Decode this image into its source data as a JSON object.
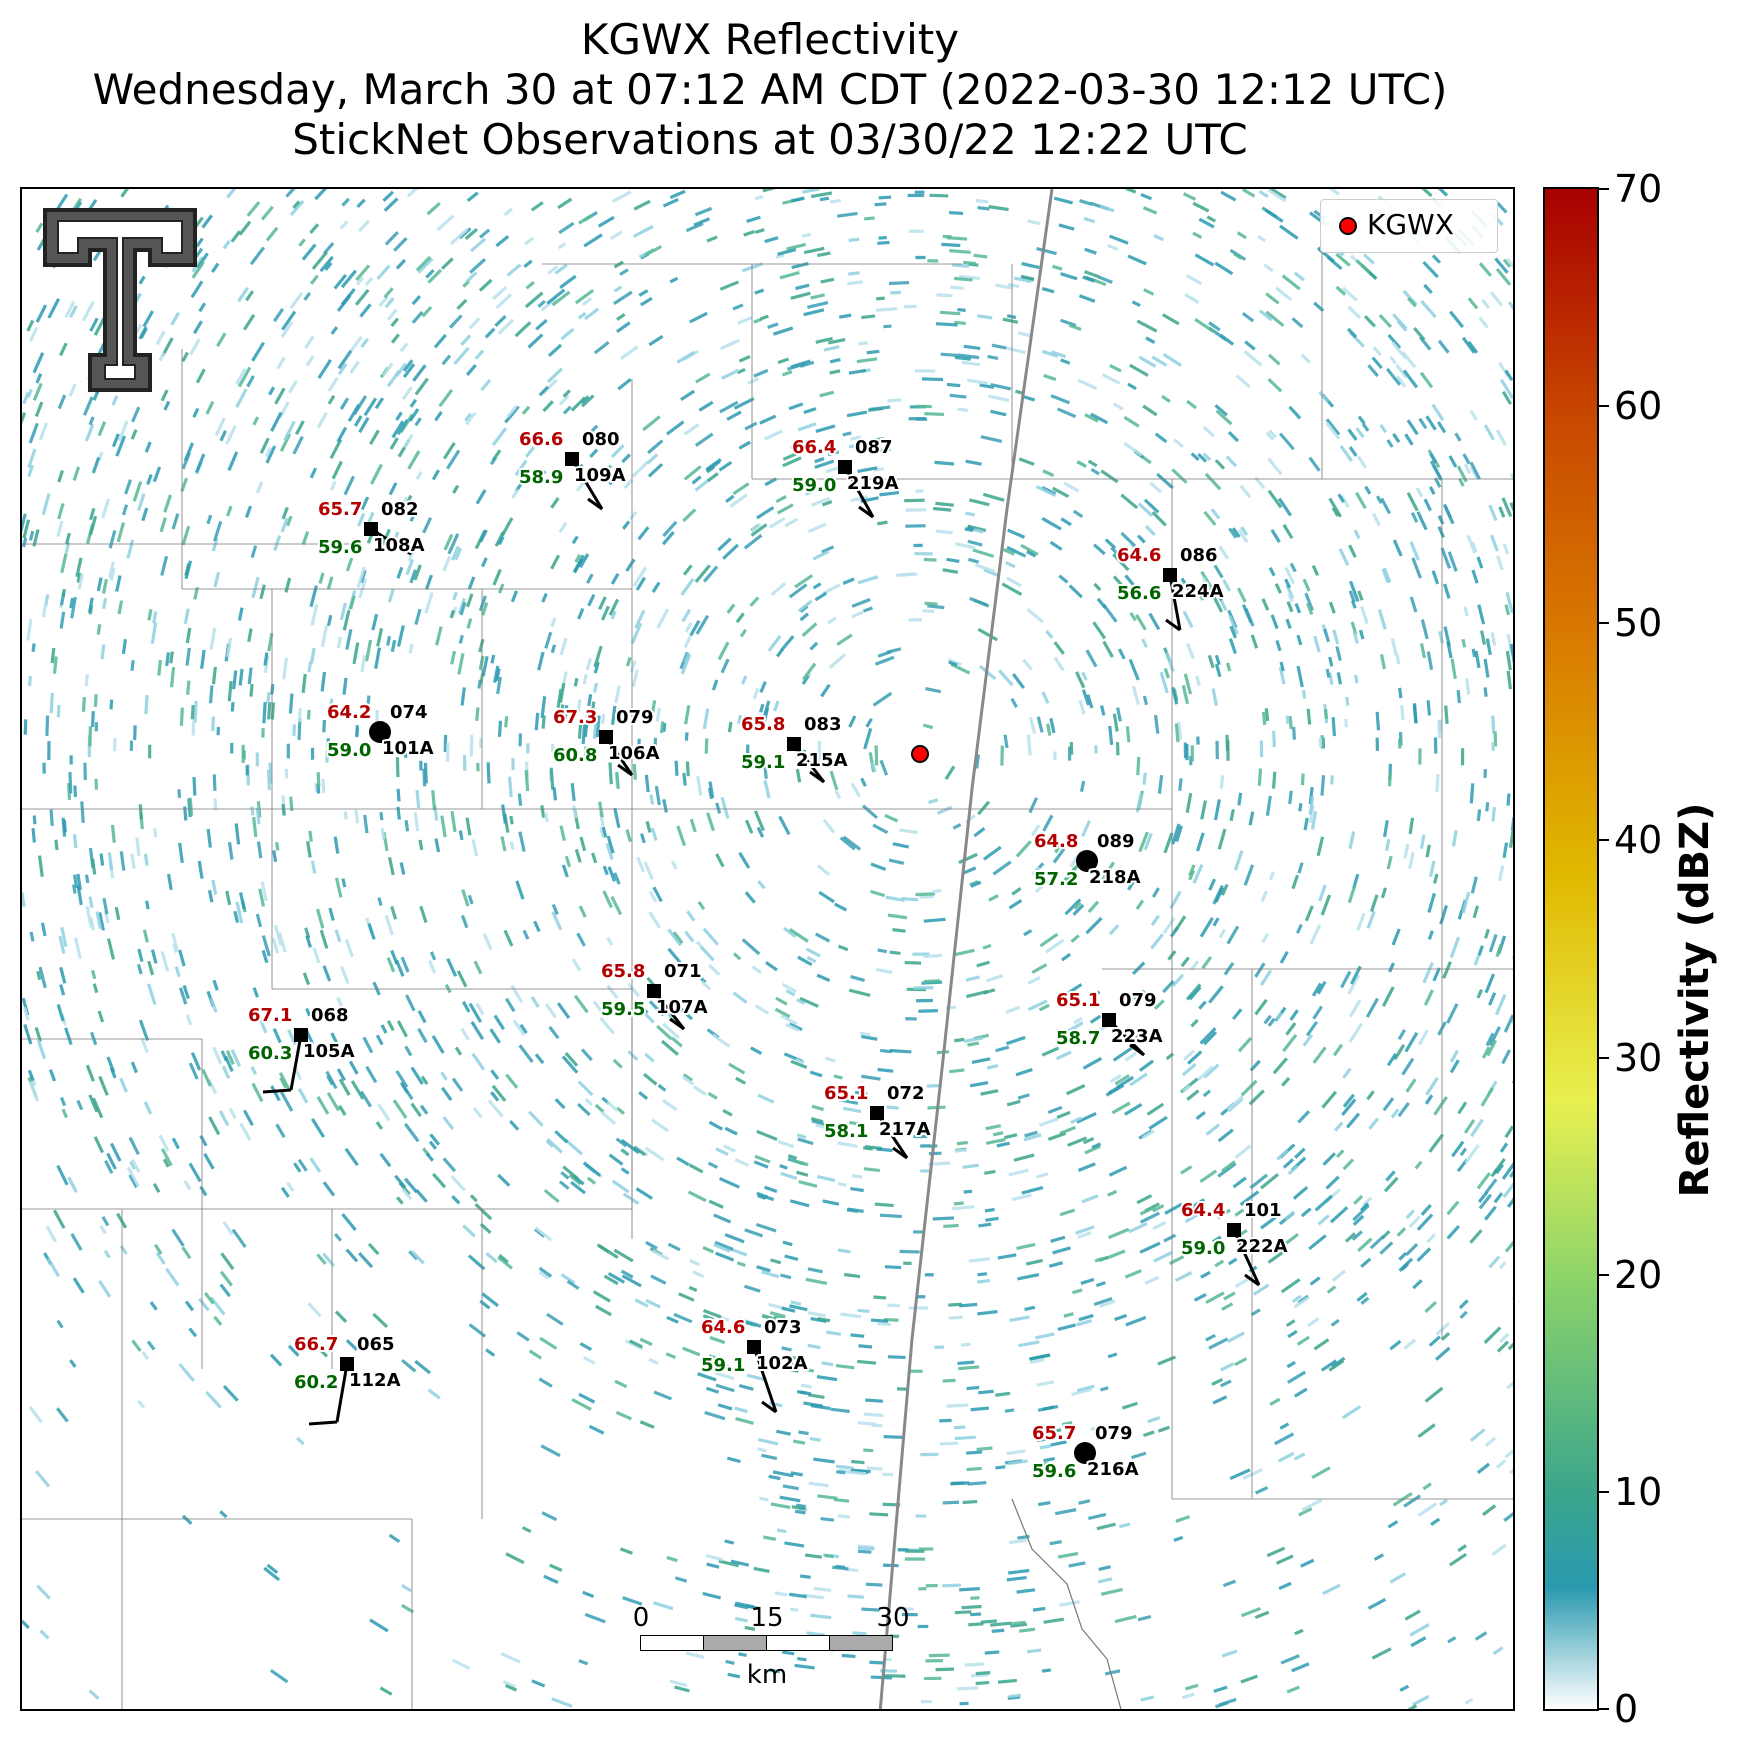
{
  "title": {
    "line1": "KGWX Reflectivity",
    "line2": "Wednesday, March 30 at 07:12 AM CDT (2022-03-30 12:12 UTC)",
    "line3": "StickNet Observations at 03/30/22 12:22 UTC"
  },
  "legend": {
    "label": "KGWX",
    "marker_color": "#ff0000"
  },
  "colorbar": {
    "label": "Reflectivity (dBZ)",
    "ticks": [
      "70",
      "60",
      "50",
      "40",
      "30",
      "20",
      "10",
      "0"
    ],
    "colors": [
      "#ffffff",
      "#2a9ab0",
      "#3aa58c",
      "#8bd36a",
      "#e8f050",
      "#e0b800",
      "#d97c00",
      "#c84800",
      "#a80000"
    ]
  },
  "radar": {
    "name": "KGWX",
    "color": "#ff0000"
  },
  "stations": [
    {
      "id": "109A",
      "temp": "66.6",
      "dew": "58.9",
      "dir": "080",
      "marker": "square"
    },
    {
      "id": "219A",
      "temp": "66.4",
      "dew": "59.0",
      "dir": "087",
      "marker": "square"
    },
    {
      "id": "108A",
      "temp": "65.7",
      "dew": "59.6",
      "dir": "082",
      "marker": "square"
    },
    {
      "id": "224A",
      "temp": "64.6",
      "dew": "56.6",
      "dir": "086",
      "marker": "square"
    },
    {
      "id": "101A",
      "temp": "64.2",
      "dew": "59.0",
      "dir": "074",
      "marker": "circle"
    },
    {
      "id": "106A",
      "temp": "67.3",
      "dew": "60.8",
      "dir": "079",
      "marker": "square"
    },
    {
      "id": "215A",
      "temp": "65.8",
      "dew": "59.1",
      "dir": "083",
      "marker": "square"
    },
    {
      "id": "218A",
      "temp": "64.8",
      "dew": "57.2",
      "dir": "089",
      "marker": "circle"
    },
    {
      "id": "107A",
      "temp": "65.8",
      "dew": "59.5",
      "dir": "071",
      "marker": "square"
    },
    {
      "id": "223A",
      "temp": "65.1",
      "dew": "58.7",
      "dir": "079",
      "marker": "square"
    },
    {
      "id": "105A",
      "temp": "67.1",
      "dew": "60.3",
      "dir": "068",
      "marker": "square"
    },
    {
      "id": "217A",
      "temp": "65.1",
      "dew": "58.1",
      "dir": "072",
      "marker": "square"
    },
    {
      "id": "222A",
      "temp": "64.4",
      "dew": "59.0",
      "dir": "101",
      "marker": "square"
    },
    {
      "id": "102A",
      "temp": "64.6",
      "dew": "59.1",
      "dir": "073",
      "marker": "square"
    },
    {
      "id": "112A",
      "temp": "66.7",
      "dew": "60.2",
      "dir": "065",
      "marker": "square"
    },
    {
      "id": "216A",
      "temp": "65.7",
      "dew": "59.6",
      "dir": "079",
      "marker": "circle"
    }
  ],
  "scalebar": {
    "ticks": [
      "0",
      "15",
      "30"
    ],
    "unit": "km"
  }
}
